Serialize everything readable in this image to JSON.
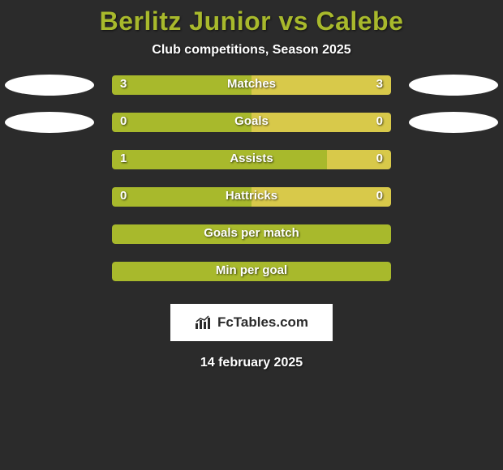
{
  "title_color": "#a8b92c",
  "header": {
    "player_left": "Berlitz Junior",
    "vs": "vs",
    "player_right": "Calebe",
    "subtitle": "Club competitions, Season 2025"
  },
  "colors": {
    "left_bar": "#a8b92c",
    "right_bar": "#d8c94a",
    "background": "#2b2b2b",
    "text": "#ffffff",
    "oval": "#ffffff"
  },
  "bar": {
    "track_width": 344,
    "track_height": 24,
    "border_radius": 4
  },
  "rows": [
    {
      "label": "Matches",
      "left_val": "3",
      "right_val": "3",
      "left_pct": 50,
      "right_pct": 50,
      "show_vals": true,
      "show_ovals": true
    },
    {
      "label": "Goals",
      "left_val": "0",
      "right_val": "0",
      "left_pct": 50,
      "right_pct": 50,
      "show_vals": true,
      "show_ovals": true
    },
    {
      "label": "Assists",
      "left_val": "1",
      "right_val": "0",
      "left_pct": 77,
      "right_pct": 23,
      "show_vals": true,
      "show_ovals": false
    },
    {
      "label": "Hattricks",
      "left_val": "0",
      "right_val": "0",
      "left_pct": 50,
      "right_pct": 50,
      "show_vals": true,
      "show_ovals": false
    },
    {
      "label": "Goals per match",
      "left_val": "",
      "right_val": "",
      "left_pct": 100,
      "right_pct": 0,
      "show_vals": false,
      "show_ovals": false
    },
    {
      "label": "Min per goal",
      "left_val": "",
      "right_val": "",
      "left_pct": 100,
      "right_pct": 0,
      "show_vals": false,
      "show_ovals": false
    }
  ],
  "footer": {
    "logo_text": "FcTables.com",
    "date": "14 february 2025"
  }
}
